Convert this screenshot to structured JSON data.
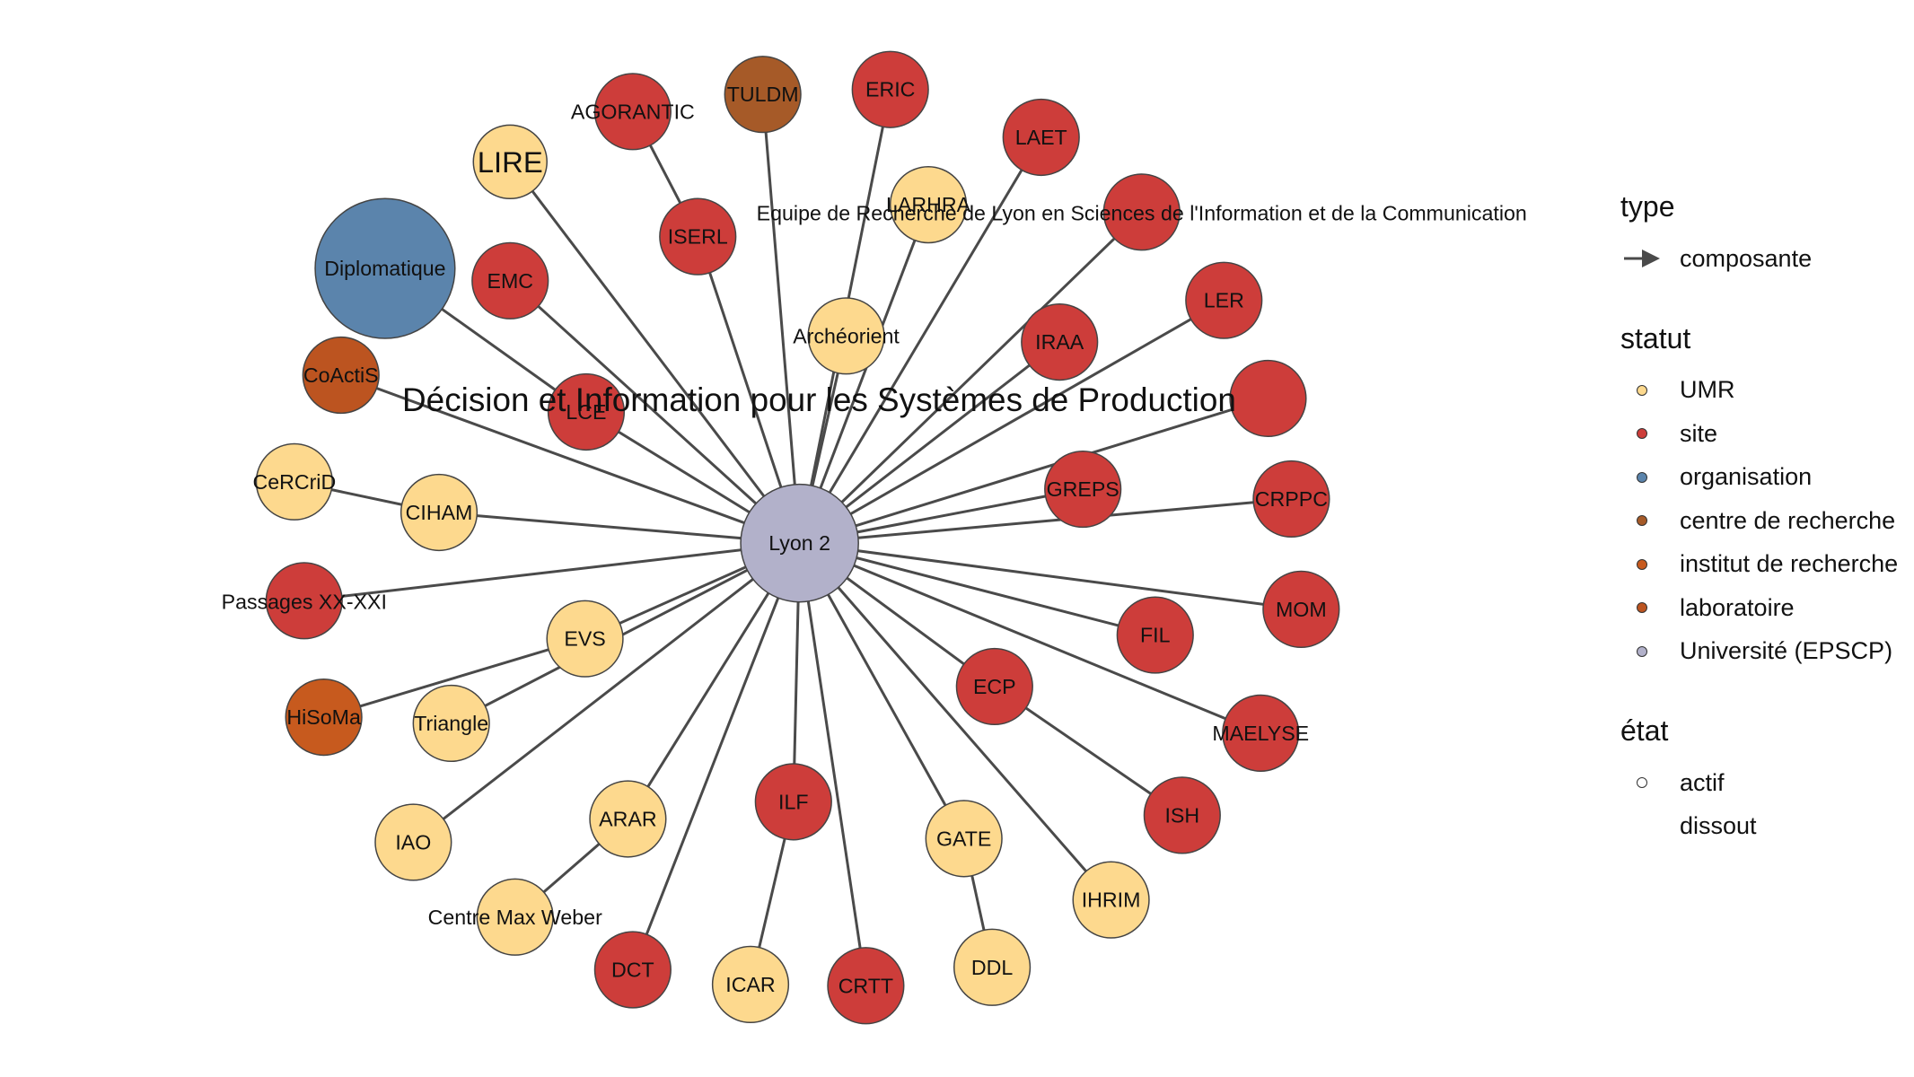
{
  "legend": {
    "type": {
      "title": "type",
      "items": [
        {
          "label": "composante"
        }
      ]
    },
    "statut": {
      "title": "statut",
      "items": [
        {
          "label": "UMR",
          "color": "#FDD98E"
        },
        {
          "label": "site",
          "color": "#CD3D3A"
        },
        {
          "label": "organisation",
          "color": "#5B84AC"
        },
        {
          "label": "centre de recherche",
          "color": "#A65A28"
        },
        {
          "label": "institut de recherche",
          "color": "#C75A1E"
        },
        {
          "label": "laboratoire",
          "color": "#BC5420"
        },
        {
          "label": "Université (EPSCP)",
          "color": "#B2B1CA"
        }
      ]
    },
    "etat": {
      "title": "état",
      "items": [
        {
          "label": "actif",
          "shape": "open-circle"
        },
        {
          "label": "dissout",
          "shape": "none"
        }
      ]
    }
  },
  "graph": {
    "center": {
      "id": "lyon2",
      "label": "Lyon 2",
      "statut": "Université (EPSCP)"
    },
    "nodes": [
      {
        "id": "lire",
        "label": "LIRE",
        "statut": "UMR"
      },
      {
        "id": "agorantic",
        "label": "AGORANTIC",
        "statut": "site"
      },
      {
        "id": "tuldm",
        "label": "TULDM",
        "statut": "centre de recherche"
      },
      {
        "id": "eric",
        "label": "ERIC",
        "statut": "site"
      },
      {
        "id": "laet",
        "label": "LAET",
        "statut": "site"
      },
      {
        "id": "larhra",
        "label": "LARHRA",
        "statut": "UMR"
      },
      {
        "id": "elico",
        "label": "Equipe de Recherche de Lyon en Sciences de l'Information et de la Communication",
        "statut": "site"
      },
      {
        "id": "diplomatique",
        "label": "Diplomatique",
        "statut": "organisation"
      },
      {
        "id": "emc",
        "label": "EMC",
        "statut": "site"
      },
      {
        "id": "iserl",
        "label": "ISERL",
        "statut": "site"
      },
      {
        "id": "ler",
        "label": "LER",
        "statut": "site"
      },
      {
        "id": "coactis",
        "label": "CoActiS",
        "statut": "laboratoire"
      },
      {
        "id": "archeorient",
        "label": "Archéorient",
        "statut": "UMR"
      },
      {
        "id": "iraa",
        "label": "IRAA",
        "statut": "site"
      },
      {
        "id": "lce",
        "label": "LCE",
        "statut": "site"
      },
      {
        "id": "disp",
        "label": "Décision et Information pour les Systèmes de Production",
        "statut": "site"
      },
      {
        "id": "cercrid",
        "label": "CeRCriD",
        "statut": "UMR"
      },
      {
        "id": "ciham",
        "label": "CIHAM",
        "statut": "UMR"
      },
      {
        "id": "greps",
        "label": "GREPS",
        "statut": "site"
      },
      {
        "id": "crppc",
        "label": "CRPPC",
        "statut": "site"
      },
      {
        "id": "passages",
        "label": "Passages XX-XXI",
        "statut": "site"
      },
      {
        "id": "mom",
        "label": "MOM",
        "statut": "site"
      },
      {
        "id": "evs",
        "label": "EVS",
        "statut": "UMR"
      },
      {
        "id": "fil",
        "label": "FIL",
        "statut": "site"
      },
      {
        "id": "hisoma",
        "label": "HiSoMa",
        "statut": "institut de recherche"
      },
      {
        "id": "triangle",
        "label": "Triangle",
        "statut": "UMR"
      },
      {
        "id": "ecp",
        "label": "ECP",
        "statut": "site"
      },
      {
        "id": "maelyse",
        "label": "MAELYSE",
        "statut": "site"
      },
      {
        "id": "ilf",
        "label": "ILF",
        "statut": "site"
      },
      {
        "id": "arar",
        "label": "ARAR",
        "statut": "UMR"
      },
      {
        "id": "iao",
        "label": "IAO",
        "statut": "UMR"
      },
      {
        "id": "gate",
        "label": "GATE",
        "statut": "UMR"
      },
      {
        "id": "ish",
        "label": "ISH",
        "statut": "site"
      },
      {
        "id": "ihrim",
        "label": "IHRIM",
        "statut": "UMR"
      },
      {
        "id": "cmw",
        "label": "Centre Max Weber",
        "statut": "UMR"
      },
      {
        "id": "dct",
        "label": "DCT",
        "statut": "site"
      },
      {
        "id": "icar",
        "label": "ICAR",
        "statut": "UMR"
      },
      {
        "id": "crtt",
        "label": "CRTT",
        "statut": "site"
      },
      {
        "id": "ddl",
        "label": "DDL",
        "statut": "UMR"
      }
    ],
    "edges": [
      [
        "lyon2",
        "lire"
      ],
      [
        "lyon2",
        "iserl"
      ],
      [
        "iserl",
        "agorantic"
      ],
      [
        "lyon2",
        "tuldm"
      ],
      [
        "lyon2",
        "eric"
      ],
      [
        "lyon2",
        "laet"
      ],
      [
        "lyon2",
        "larhra"
      ],
      [
        "lyon2",
        "elico"
      ],
      [
        "lyon2",
        "lce"
      ],
      [
        "lce",
        "diplomatique"
      ],
      [
        "lyon2",
        "emc"
      ],
      [
        "lyon2",
        "ler"
      ],
      [
        "lyon2",
        "coactis"
      ],
      [
        "lyon2",
        "archeorient"
      ],
      [
        "lyon2",
        "iraa"
      ],
      [
        "lyon2",
        "disp"
      ],
      [
        "lyon2",
        "ciham"
      ],
      [
        "ciham",
        "cercrid"
      ],
      [
        "lyon2",
        "greps"
      ],
      [
        "lyon2",
        "crppc"
      ],
      [
        "lyon2",
        "passages"
      ],
      [
        "lyon2",
        "mom"
      ],
      [
        "lyon2",
        "evs"
      ],
      [
        "evs",
        "hisoma"
      ],
      [
        "lyon2",
        "triangle"
      ],
      [
        "lyon2",
        "fil"
      ],
      [
        "lyon2",
        "ecp"
      ],
      [
        "ecp",
        "ish"
      ],
      [
        "lyon2",
        "maelyse"
      ],
      [
        "lyon2",
        "ilf"
      ],
      [
        "ilf",
        "icar"
      ],
      [
        "lyon2",
        "arar"
      ],
      [
        "arar",
        "cmw"
      ],
      [
        "lyon2",
        "iao"
      ],
      [
        "lyon2",
        "gate"
      ],
      [
        "gate",
        "ddl"
      ],
      [
        "lyon2",
        "ihrim"
      ],
      [
        "lyon2",
        "dct"
      ],
      [
        "lyon2",
        "crtt"
      ]
    ]
  }
}
